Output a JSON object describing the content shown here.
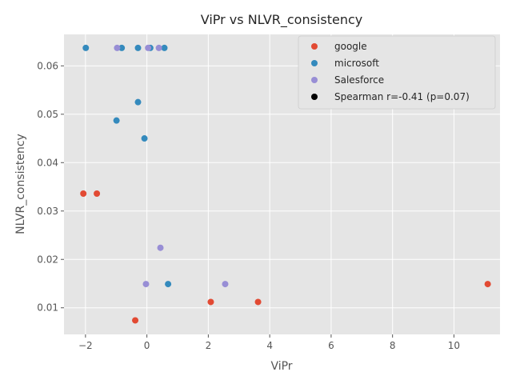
{
  "chart_data": {
    "type": "scatter",
    "title": "ViPr vs NLVR_consistency",
    "xlabel": "ViPr",
    "ylabel": "NLVR_consistency",
    "xlim": [
      -2.7,
      11.5
    ],
    "ylim": [
      0.0045,
      0.0665
    ],
    "xticks": [
      -2,
      0,
      2,
      4,
      6,
      8,
      10
    ],
    "xtick_labels": [
      "−2",
      "0",
      "2",
      "4",
      "6",
      "8",
      "10"
    ],
    "yticks": [
      0.01,
      0.02,
      0.03,
      0.04,
      0.05,
      0.06
    ],
    "ytick_labels": [
      "0.01",
      "0.02",
      "0.03",
      "0.04",
      "0.05",
      "0.06"
    ],
    "grid": true,
    "legend_position": "top-right",
    "annotation": "Spearman r=-0.41 (p=0.07)",
    "colors": {
      "google": "#E24A33",
      "microsoft": "#348ABD",
      "Salesforce": "#988ED5",
      "annotation": "#000000"
    },
    "series": [
      {
        "name": "google",
        "color": "#E24A33",
        "points": [
          [
            -2.07,
            0.0336
          ],
          [
            -1.63,
            0.0336
          ],
          [
            -0.38,
            0.0074
          ],
          [
            2.08,
            0.0112
          ],
          [
            3.62,
            0.0112
          ],
          [
            11.1,
            0.0149
          ]
        ]
      },
      {
        "name": "microsoft",
        "color": "#348ABD",
        "points": [
          [
            -1.99,
            0.0637
          ],
          [
            -0.82,
            0.0637
          ],
          [
            -0.29,
            0.0637
          ],
          [
            0.11,
            0.0637
          ],
          [
            0.57,
            0.0637
          ],
          [
            -0.29,
            0.0525
          ],
          [
            -0.99,
            0.0487
          ],
          [
            -0.08,
            0.045
          ],
          [
            0.69,
            0.0149
          ]
        ]
      },
      {
        "name": "Salesforce",
        "color": "#988ED5",
        "points": [
          [
            -0.97,
            0.0637
          ],
          [
            0.04,
            0.0637
          ],
          [
            0.39,
            0.0637
          ],
          [
            0.44,
            0.0224
          ],
          [
            -0.03,
            0.0149
          ],
          [
            2.55,
            0.0149
          ]
        ]
      }
    ]
  }
}
